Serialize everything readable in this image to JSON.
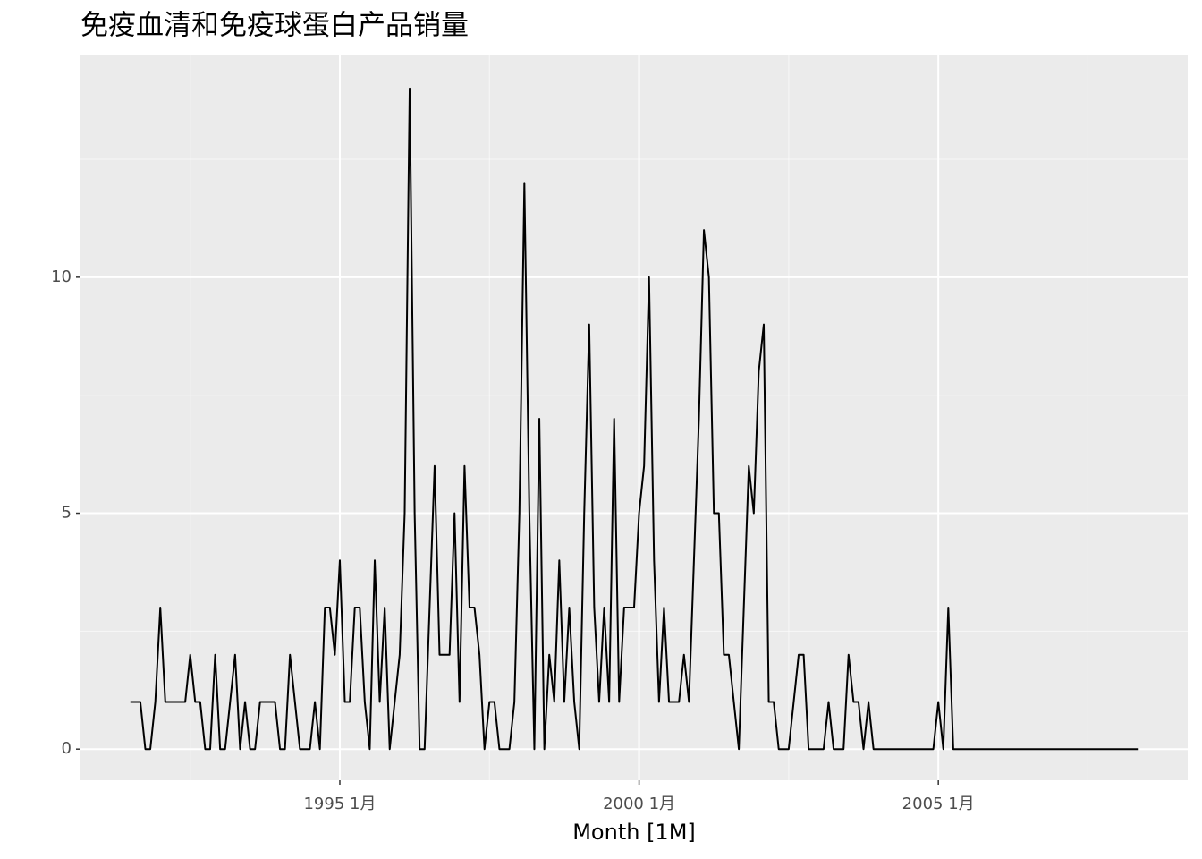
{
  "chart_data": {
    "type": "line",
    "title": "免疫血清和免疫球蛋白产品销量",
    "x_label": "Month [1M]",
    "x": [
      "1991-07",
      "1991-08",
      "1991-09",
      "1991-10",
      "1991-11",
      "1991-12",
      "1992-01",
      "1992-02",
      "1992-03",
      "1992-04",
      "1992-05",
      "1992-06",
      "1992-07",
      "1992-08",
      "1992-09",
      "1992-10",
      "1992-11",
      "1992-12",
      "1993-01",
      "1993-02",
      "1993-03",
      "1993-04",
      "1993-05",
      "1993-06",
      "1993-07",
      "1993-08",
      "1993-09",
      "1993-10",
      "1993-11",
      "1993-12",
      "1994-01",
      "1994-02",
      "1994-03",
      "1994-04",
      "1994-05",
      "1994-06",
      "1994-07",
      "1994-08",
      "1994-09",
      "1994-10",
      "1994-11",
      "1994-12",
      "1995-01",
      "1995-02",
      "1995-03",
      "1995-04",
      "1995-05",
      "1995-06",
      "1995-07",
      "1995-08",
      "1995-09",
      "1995-10",
      "1995-11",
      "1995-12",
      "1996-01",
      "1996-02",
      "1996-03",
      "1996-04",
      "1996-05",
      "1996-06",
      "1996-07",
      "1996-08",
      "1996-09",
      "1996-10",
      "1996-11",
      "1996-12",
      "1997-01",
      "1997-02",
      "1997-03",
      "1997-04",
      "1997-05",
      "1997-06",
      "1997-07",
      "1997-08",
      "1997-09",
      "1997-10",
      "1997-11",
      "1997-12",
      "1998-01",
      "1998-02",
      "1998-03",
      "1998-04",
      "1998-05",
      "1998-06",
      "1998-07",
      "1998-08",
      "1998-09",
      "1998-10",
      "1998-11",
      "1998-12",
      "1999-01",
      "1999-02",
      "1999-03",
      "1999-04",
      "1999-05",
      "1999-06",
      "1999-07",
      "1999-08",
      "1999-09",
      "1999-10",
      "1999-11",
      "1999-12",
      "2000-01",
      "2000-02",
      "2000-03",
      "2000-04",
      "2000-05",
      "2000-06",
      "2000-07",
      "2000-08",
      "2000-09",
      "2000-10",
      "2000-11",
      "2000-12",
      "2001-01",
      "2001-02",
      "2001-03",
      "2001-04",
      "2001-05",
      "2001-06",
      "2001-07",
      "2001-08",
      "2001-09",
      "2001-10",
      "2001-11",
      "2001-12",
      "2002-01",
      "2002-02",
      "2002-03",
      "2002-04",
      "2002-05",
      "2002-06",
      "2002-07",
      "2002-08",
      "2002-09",
      "2002-10",
      "2002-11",
      "2002-12",
      "2003-01",
      "2003-02",
      "2003-03",
      "2003-04",
      "2003-05",
      "2003-06",
      "2003-07",
      "2003-08",
      "2003-09",
      "2003-10",
      "2003-11",
      "2003-12",
      "2004-01",
      "2004-02",
      "2004-03",
      "2004-04",
      "2004-05",
      "2004-06",
      "2004-07",
      "2004-08",
      "2004-09",
      "2004-10",
      "2004-11",
      "2004-12",
      "2005-01",
      "2005-02",
      "2005-03",
      "2005-04",
      "2005-05",
      "2005-06",
      "2005-07",
      "2005-08",
      "2005-09",
      "2005-10",
      "2005-11",
      "2005-12",
      "2006-01",
      "2006-02",
      "2006-03",
      "2006-04",
      "2006-05",
      "2006-06",
      "2006-07",
      "2006-08",
      "2006-09",
      "2006-10",
      "2006-11",
      "2006-12",
      "2007-01",
      "2007-02",
      "2007-03",
      "2007-04",
      "2007-05",
      "2007-06",
      "2007-07",
      "2007-08",
      "2007-09",
      "2007-10",
      "2007-11",
      "2007-12",
      "2008-01",
      "2008-02",
      "2008-03",
      "2008-04",
      "2008-05"
    ],
    "values": [
      1,
      1,
      1,
      0,
      0,
      1,
      3,
      1,
      1,
      1,
      1,
      1,
      2,
      1,
      1,
      0,
      0,
      2,
      0,
      0,
      1,
      2,
      0,
      1,
      0,
      0,
      1,
      1,
      1,
      1,
      0,
      0,
      2,
      1,
      0,
      0,
      0,
      1,
      0,
      3,
      3,
      2,
      4,
      1,
      1,
      3,
      3,
      1,
      0,
      4,
      1,
      3,
      0,
      1,
      2,
      5,
      14,
      5,
      0,
      0,
      3,
      6,
      2,
      2,
      2,
      5,
      1,
      6,
      3,
      3,
      2,
      0,
      1,
      1,
      0,
      0,
      0,
      1,
      5,
      12,
      5,
      0,
      7,
      0,
      2,
      1,
      4,
      1,
      3,
      1,
      0,
      5,
      9,
      3,
      1,
      3,
      1,
      7,
      1,
      3,
      3,
      3,
      5,
      6,
      10,
      4,
      1,
      3,
      1,
      1,
      1,
      2,
      1,
      4,
      7,
      11,
      10,
      5,
      5,
      2,
      2,
      1,
      0,
      3,
      6,
      5,
      8,
      9,
      1,
      1,
      0,
      0,
      0,
      1,
      2,
      2,
      0,
      0,
      0,
      0,
      1,
      0,
      0,
      0,
      2,
      1,
      1,
      0,
      1,
      0,
      0,
      0,
      0,
      0,
      0,
      0,
      0,
      0,
      0,
      0,
      0,
      0,
      1,
      0,
      3,
      0,
      0,
      0,
      0,
      0,
      0,
      0,
      0,
      0,
      0,
      0,
      0,
      0,
      0,
      0,
      0,
      0,
      0,
      0,
      0,
      0,
      0,
      0,
      0,
      0,
      0,
      0,
      0,
      0,
      0,
      0,
      0,
      0,
      0,
      0,
      0,
      0,
      0
    ],
    "color": "#000000",
    "xlim": [
      "1990-09",
      "2009-03"
    ],
    "xticks": [
      {
        "value": "1995-01",
        "label": "1995 1月"
      },
      {
        "value": "2000-01",
        "label": "2000 1月"
      },
      {
        "value": "2005-01",
        "label": "2005 1月"
      }
    ],
    "ylim": [
      -0.66,
      14.7
    ],
    "yticks": [
      0,
      5,
      10
    ],
    "grid": true
  }
}
